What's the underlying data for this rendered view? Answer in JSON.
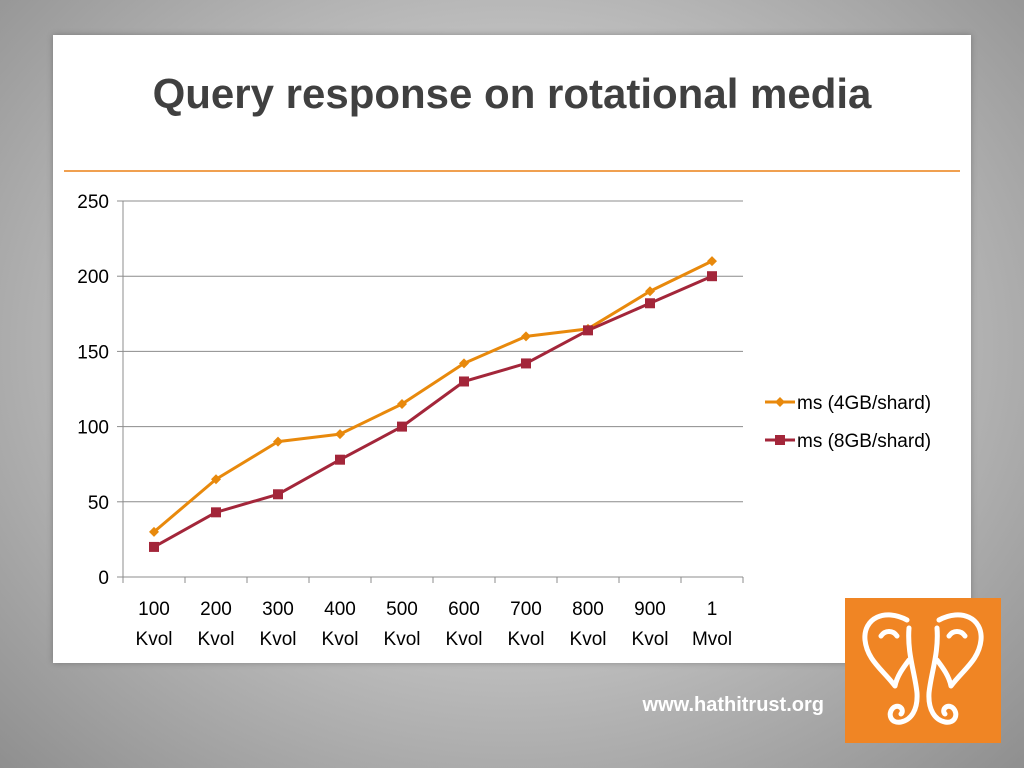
{
  "slide": {
    "title": "Query response on rotational media",
    "footer_url": "www.hathitrust.org",
    "logo_icon": "elephant-icon"
  },
  "colors": {
    "accent": "#e8890c",
    "series_4gb": "#e8890c",
    "series_8gb": "#a3263a",
    "logo_bg": "#f08524"
  },
  "chart_data": {
    "type": "line",
    "title": "",
    "xlabel": "",
    "ylabel": "",
    "categories": [
      [
        "100",
        "Kvol"
      ],
      [
        "200",
        "Kvol"
      ],
      [
        "300",
        "Kvol"
      ],
      [
        "400",
        "Kvol"
      ],
      [
        "500",
        "Kvol"
      ],
      [
        "600",
        "Kvol"
      ],
      [
        "700",
        "Kvol"
      ],
      [
        "800",
        "Kvol"
      ],
      [
        "900",
        "Kvol"
      ],
      [
        "1",
        "Mvol"
      ]
    ],
    "ylim": [
      0,
      250
    ],
    "yticks": [
      0,
      50,
      100,
      150,
      200,
      250
    ],
    "grid": true,
    "legend_position": "right",
    "series": [
      {
        "name": "ms (4GB/shard)",
        "marker": "diamond",
        "color": "#e8890c",
        "values": [
          30,
          65,
          90,
          95,
          115,
          142,
          160,
          165,
          190,
          210
        ]
      },
      {
        "name": "ms (8GB/shard)",
        "marker": "square",
        "color": "#a3263a",
        "values": [
          20,
          43,
          55,
          78,
          100,
          130,
          142,
          164,
          182,
          200
        ]
      }
    ]
  }
}
